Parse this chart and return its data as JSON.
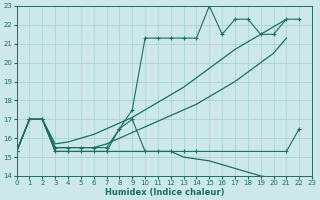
{
  "xlabel": "Humidex (Indice chaleur)",
  "bg_color": "#cce8e8",
  "grid_color": "#aad4d4",
  "line_color": "#1a7060",
  "xlim": [
    0,
    23
  ],
  "ylim": [
    14,
    23
  ],
  "xticks": [
    0,
    1,
    2,
    3,
    4,
    5,
    6,
    7,
    8,
    9,
    10,
    11,
    12,
    13,
    14,
    15,
    16,
    17,
    18,
    19,
    20,
    21,
    22,
    23
  ],
  "yticks": [
    14,
    15,
    16,
    17,
    18,
    19,
    20,
    21,
    22,
    23
  ],
  "series": [
    {
      "x": [
        0,
        1,
        2,
        3,
        4,
        5,
        6,
        7,
        8,
        9,
        10,
        11,
        12,
        13,
        14,
        15,
        16,
        17,
        18,
        19,
        20,
        21
      ],
      "y": [
        15.3,
        17.0,
        17.0,
        15.5,
        15.5,
        15.5,
        15.5,
        15.7,
        16.0,
        16.3,
        16.6,
        16.9,
        17.2,
        17.5,
        17.8,
        18.2,
        18.6,
        19.0,
        19.5,
        20.0,
        20.5,
        21.3
      ],
      "has_markers": false
    },
    {
      "x": [
        0,
        1,
        2,
        3,
        4,
        5,
        6,
        7,
        8,
        9,
        10,
        11,
        12,
        13,
        14,
        15,
        16,
        17,
        18,
        19,
        20,
        21
      ],
      "y": [
        15.3,
        17.0,
        17.0,
        15.7,
        15.8,
        16.0,
        16.2,
        16.5,
        16.8,
        17.1,
        17.5,
        17.9,
        18.3,
        18.7,
        19.2,
        19.7,
        20.2,
        20.7,
        21.1,
        21.5,
        21.9,
        22.3
      ],
      "has_markers": false
    },
    {
      "x": [
        0,
        1,
        2,
        3,
        4,
        5,
        6,
        7,
        8,
        9,
        10,
        11,
        12,
        13,
        14,
        15,
        16,
        17,
        18,
        19,
        20,
        21,
        22
      ],
      "y": [
        15.3,
        17.0,
        17.0,
        15.5,
        15.5,
        15.5,
        15.5,
        15.5,
        16.5,
        17.5,
        21.3,
        21.3,
        21.3,
        21.3,
        21.3,
        23.0,
        21.5,
        22.3,
        22.3,
        21.5,
        21.5,
        22.3,
        22.3
      ],
      "has_markers": true
    },
    {
      "x": [
        0,
        1,
        2,
        3,
        4,
        5,
        6,
        7,
        8,
        9,
        10,
        11,
        12,
        13,
        14,
        15,
        16,
        17,
        18,
        19,
        20,
        21,
        22,
        23
      ],
      "y": [
        15.3,
        17.0,
        17.0,
        15.3,
        15.3,
        15.3,
        15.3,
        15.3,
        15.3,
        15.3,
        15.3,
        15.3,
        15.3,
        15.0,
        14.9,
        14.8,
        14.6,
        14.4,
        14.2,
        14.0,
        13.9,
        13.8,
        13.8,
        13.8
      ],
      "has_markers": false
    },
    {
      "x": [
        0,
        1,
        2,
        3,
        4,
        5,
        6,
        7,
        8,
        9,
        10,
        11,
        12,
        13,
        14,
        21,
        22
      ],
      "y": [
        15.3,
        17.0,
        17.0,
        15.3,
        15.3,
        15.3,
        15.3,
        15.3,
        16.5,
        17.0,
        15.3,
        15.3,
        15.3,
        15.3,
        15.3,
        15.3,
        16.5
      ],
      "has_markers": true
    }
  ]
}
